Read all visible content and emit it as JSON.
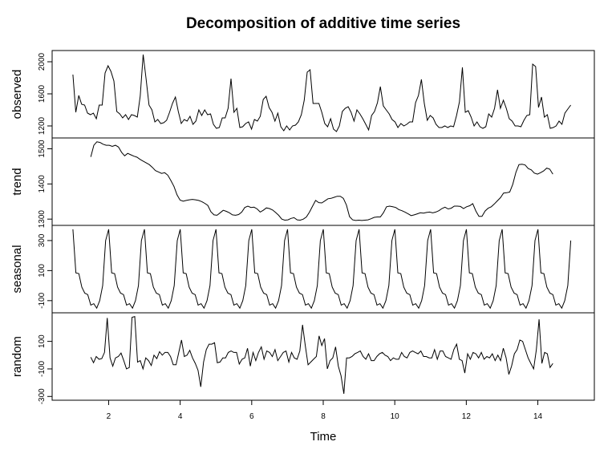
{
  "chart_data": {
    "type": "line",
    "title": "Decomposition of additive time series",
    "xlabel": "Time",
    "xlim": [
      0.42,
      15.58
    ],
    "x_ticks": [
      2,
      4,
      6,
      8,
      10,
      12,
      14
    ],
    "x_tick_labels": [
      "2",
      "4",
      "6",
      "8",
      "10",
      "12",
      "14"
    ],
    "grid": false,
    "legend": "none",
    "panels": [
      {
        "name": "observed",
        "ylim": [
          1080,
          2110
        ],
        "y_ticks": [
          1200,
          1600,
          2000
        ],
        "y_tick_labels": [
          "1200",
          "1600",
          "2000"
        ],
        "start": 1,
        "values": [
          1840,
          1370,
          1580,
          1470,
          1460,
          1360,
          1340,
          1360,
          1290,
          1460,
          1460,
          1860,
          1950,
          1880,
          1760,
          1380,
          1350,
          1300,
          1340,
          1280,
          1340,
          1330,
          1310,
          1570,
          2090,
          1790,
          1460,
          1400,
          1250,
          1280,
          1230,
          1240,
          1270,
          1370,
          1480,
          1560,
          1380,
          1230,
          1280,
          1260,
          1320,
          1220,
          1260,
          1400,
          1330,
          1400,
          1340,
          1350,
          1220,
          1170,
          1180,
          1300,
          1300,
          1420,
          1790,
          1370,
          1420,
          1180,
          1190,
          1230,
          1250,
          1160,
          1280,
          1260,
          1320,
          1530,
          1570,
          1430,
          1370,
          1260,
          1360,
          1190,
          1140,
          1200,
          1150,
          1200,
          1210,
          1250,
          1340,
          1520,
          1870,
          1900,
          1480,
          1480,
          1480,
          1370,
          1230,
          1190,
          1290,
          1160,
          1130,
          1200,
          1380,
          1420,
          1440,
          1370,
          1260,
          1400,
          1350,
          1290,
          1220,
          1150,
          1330,
          1380,
          1490,
          1690,
          1450,
          1400,
          1350,
          1280,
          1250,
          1180,
          1230,
          1200,
          1220,
          1250,
          1250,
          1490,
          1580,
          1780,
          1480,
          1270,
          1330,
          1300,
          1220,
          1180,
          1180,
          1200,
          1180,
          1200,
          1190,
          1330,
          1500,
          1930,
          1370,
          1390,
          1310,
          1200,
          1250,
          1190,
          1170,
          1190,
          1350,
          1310,
          1420,
          1650,
          1420,
          1520,
          1420,
          1290,
          1260,
          1200,
          1200,
          1190,
          1270,
          1330,
          1340,
          1970,
          1940,
          1430,
          1560,
          1310,
          1340,
          1170,
          1180,
          1200,
          1260,
          1220,
          1360,
          1410,
          1460
        ],
        "end": 14.92
      },
      {
        "name": "trend",
        "ylim": [
          1289,
          1524
        ],
        "y_ticks": [
          1300,
          1400,
          1500
        ],
        "y_tick_labels": [
          "1300",
          "1400",
          "1500"
        ],
        "start": 1.5,
        "values": [
          1477,
          1510,
          1520,
          1518,
          1513,
          1510,
          1510,
          1507,
          1510,
          1505,
          1490,
          1480,
          1487,
          1483,
          1479,
          1476,
          1470,
          1465,
          1460,
          1455,
          1447,
          1438,
          1434,
          1430,
          1432,
          1425,
          1410,
          1393,
          1369,
          1354,
          1351,
          1353,
          1355,
          1356,
          1355,
          1353,
          1350,
          1345,
          1339,
          1321,
          1312,
          1311,
          1318,
          1325,
          1322,
          1318,
          1312,
          1311,
          1313,
          1320,
          1333,
          1337,
          1333,
          1334,
          1329,
          1320,
          1325,
          1332,
          1330,
          1326,
          1319,
          1311,
          1300,
          1297,
          1298,
          1302,
          1304,
          1298,
          1297,
          1300,
          1306,
          1320,
          1337,
          1353,
          1347,
          1346,
          1352,
          1358,
          1359,
          1362,
          1365,
          1365,
          1359,
          1340,
          1307,
          1298,
          1296,
          1297,
          1296,
          1297,
          1298,
          1301,
          1305,
          1306,
          1306,
          1318,
          1335,
          1337,
          1335,
          1333,
          1327,
          1324,
          1320,
          1315,
          1310,
          1312,
          1315,
          1318,
          1317,
          1319,
          1320,
          1318,
          1320,
          1324,
          1330,
          1334,
          1329,
          1331,
          1337,
          1337,
          1336,
          1330,
          1335,
          1338,
          1344,
          1323,
          1308,
          1308,
          1323,
          1331,
          1335,
          1343,
          1352,
          1361,
          1374,
          1375,
          1377,
          1399,
          1433,
          1455,
          1456,
          1454,
          1444,
          1440,
          1431,
          1428,
          1432,
          1437,
          1445,
          1442,
          1428
        ],
        "end": 14.42
      },
      {
        "name": "seasonal",
        "ylim": [
          -165,
          385
        ],
        "y_ticks": [
          -100,
          100,
          300
        ],
        "y_tick_labels": [
          "-100",
          "100",
          "300"
        ],
        "period": 12,
        "start": 1,
        "end": 14.92,
        "pattern": [
          375,
          85,
          80,
          -10,
          -50,
          -60,
          -130,
          -120,
          -150,
          -100,
          0,
          300
        ]
      },
      {
        "name": "random",
        "ylim": [
          -310,
          290
        ],
        "y_ticks": [
          -300,
          -100,
          100
        ],
        "y_tick_labels": [
          "-300",
          "-100",
          "100"
        ],
        "start": 1.5,
        "values": [
          -15,
          -55,
          -10,
          -30,
          -25,
          20,
          270,
          -20,
          -80,
          -20,
          -10,
          15,
          -40,
          -100,
          -90,
          275,
          280,
          -50,
          -40,
          -100,
          -20,
          -40,
          -75,
          0,
          -25,
          25,
          0,
          20,
          20,
          -10,
          -70,
          -70,
          20,
          110,
          -10,
          0,
          35,
          -20,
          -60,
          -110,
          -230,
          -50,
          40,
          80,
          80,
          90,
          -55,
          -50,
          -20,
          -20,
          20,
          30,
          20,
          20,
          -65,
          -30,
          -20,
          50,
          -80,
          20,
          -40,
          20,
          60,
          -30,
          30,
          20,
          -10,
          40,
          -40,
          -10,
          20,
          30,
          -50,
          20,
          -20,
          -30,
          30,
          220,
          70,
          -70,
          -50,
          -30,
          -10,
          140,
          70,
          120,
          -100,
          -40,
          -20,
          60,
          -80,
          -150,
          -280,
          -20,
          -20,
          -10,
          10,
          20,
          30,
          -10,
          -30,
          10,
          -40,
          -40,
          -10,
          10,
          20,
          0,
          -10,
          -40,
          -20,
          -30,
          -30,
          20,
          -10,
          -20,
          20,
          30,
          20,
          10,
          30,
          -10,
          -10,
          -20,
          -20,
          40,
          -30,
          30,
          30,
          -10,
          -20,
          -30,
          40,
          80,
          -30,
          -40,
          -130,
          10,
          -30,
          20,
          10,
          -20,
          20,
          -30,
          -10,
          -20,
          10,
          -40,
          0,
          -40,
          50,
          -20,
          -140,
          -80,
          10,
          40,
          110,
          100,
          40,
          -20,
          -60,
          -100,
          40,
          260,
          -60,
          20,
          10,
          -90,
          -60
        ],
        "end": 14.42
      }
    ]
  }
}
